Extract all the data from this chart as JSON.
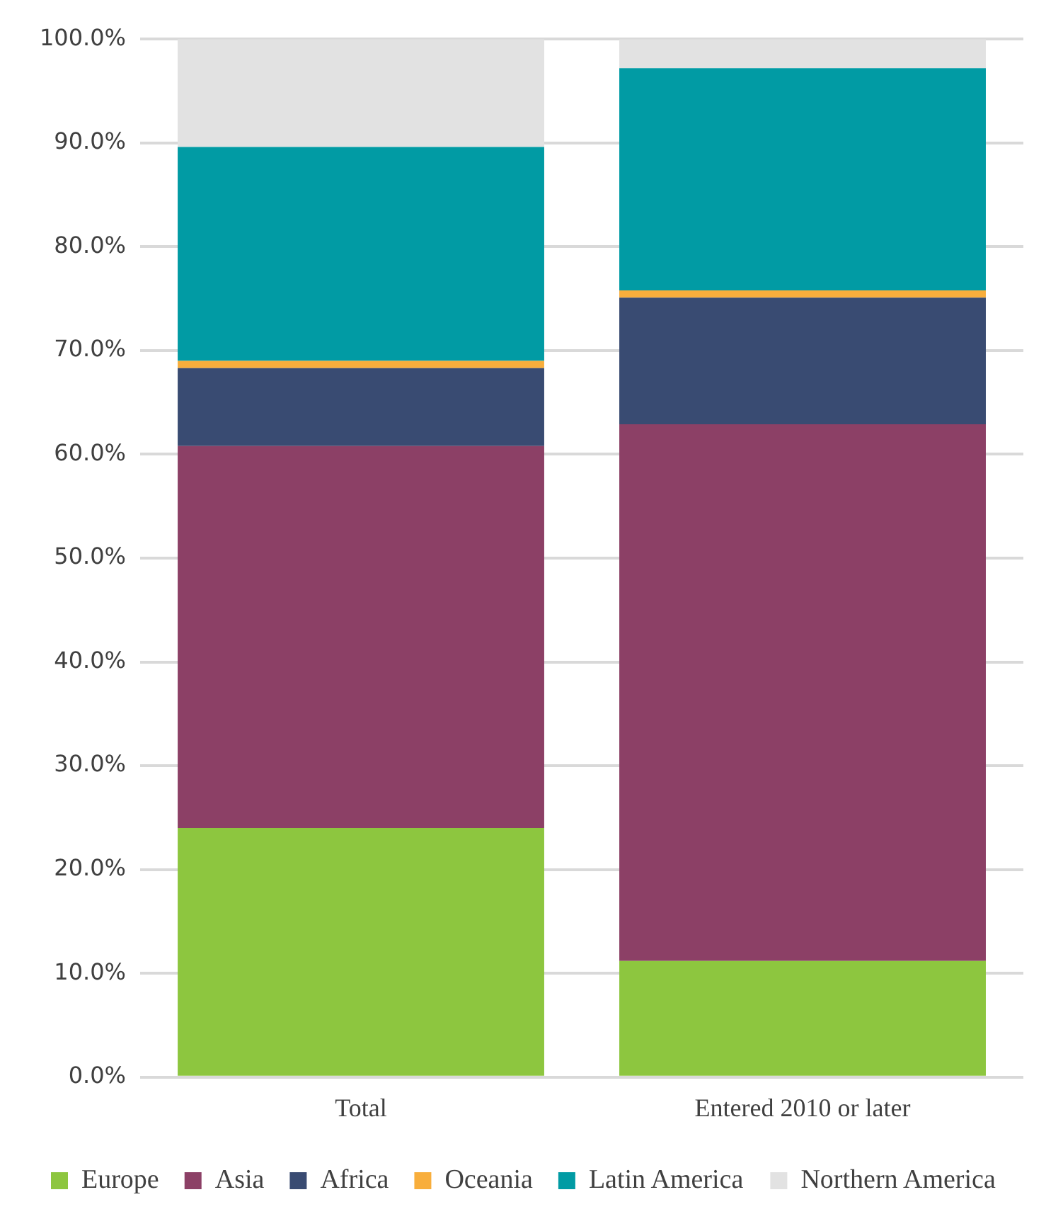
{
  "chart_data": {
    "type": "bar",
    "stacked": true,
    "categories": [
      "Total",
      "Entered 2010 or later"
    ],
    "series": [
      {
        "name": "Europe",
        "color": "#8dc63f",
        "values": [
          24.0,
          11.2
        ]
      },
      {
        "name": "Asia",
        "color": "#8c4066",
        "values": [
          36.8,
          51.7
        ]
      },
      {
        "name": "Africa",
        "color": "#394b72",
        "values": [
          7.5,
          12.2
        ]
      },
      {
        "name": "Oceania",
        "color": "#f8ae3c",
        "values": [
          0.7,
          0.7
        ]
      },
      {
        "name": "Latin America",
        "color": "#019ba4",
        "values": [
          20.6,
          21.4
        ]
      },
      {
        "name": "Northern America",
        "color": "#e2e2e2",
        "values": [
          10.4,
          2.8
        ]
      }
    ],
    "ylim": [
      0,
      100
    ],
    "yticks": [
      {
        "value": 0,
        "label": "0.0%"
      },
      {
        "value": 10,
        "label": "10.0%"
      },
      {
        "value": 20,
        "label": "20.0%"
      },
      {
        "value": 30,
        "label": "30.0%"
      },
      {
        "value": 40,
        "label": "40.0%"
      },
      {
        "value": 50,
        "label": "50.0%"
      },
      {
        "value": 60,
        "label": "60.0%"
      },
      {
        "value": 70,
        "label": "70.0%"
      },
      {
        "value": 80,
        "label": "80.0%"
      },
      {
        "value": 90,
        "label": "90.0%"
      },
      {
        "value": 100,
        "label": "100.0%"
      }
    ],
    "grid": "y",
    "legend": "bottom"
  }
}
